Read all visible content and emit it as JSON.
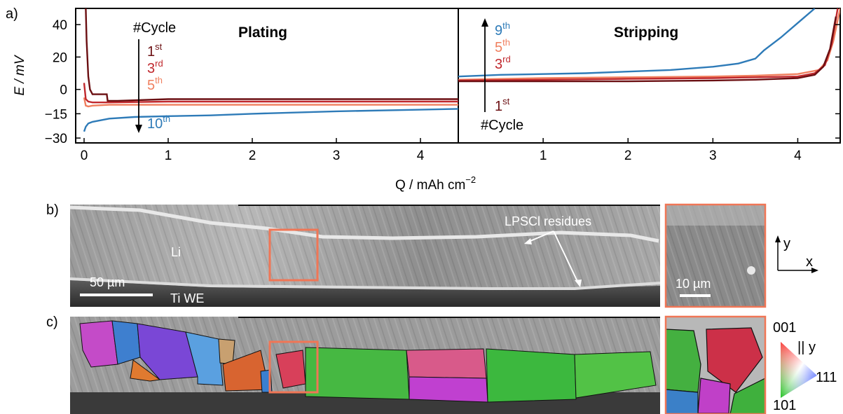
{
  "panels": {
    "a": "a)",
    "b": "b)",
    "c": "c)"
  },
  "chart_data": {
    "type": "line",
    "xlabel": "Q / mAh cm",
    "xlabel_sup": "−2",
    "ylabel": "E / mV",
    "ylim": [
      -33,
      50
    ],
    "yticks": [
      40,
      20,
      0,
      -15,
      -30
    ],
    "plating": {
      "title": "Plating",
      "xlim": [
        -0.1,
        4.45
      ],
      "xticks": [
        0,
        1,
        2,
        3,
        4
      ],
      "arrow_label": "#Cycle",
      "legend": [
        {
          "n": "1",
          "sup": "st",
          "color": "#6b0f12"
        },
        {
          "n": "3",
          "sup": "rd",
          "color": "#c0282d"
        },
        {
          "n": "5",
          "sup": "th",
          "color": "#f07f5e"
        },
        {
          "n": "10",
          "sup": "th",
          "color": "#2e7bb8"
        }
      ],
      "series": [
        {
          "cycle": "1st",
          "color": "#6b0f12",
          "x": [
            0.02,
            0.03,
            0.05,
            0.07,
            0.1,
            0.2,
            0.27,
            0.28,
            0.4,
            1,
            2,
            3,
            4,
            4.45
          ],
          "y": [
            50,
            30,
            8,
            0,
            -3,
            -3,
            -3,
            -7,
            -7,
            -6,
            -6,
            -6,
            -6,
            -6
          ]
        },
        {
          "cycle": "3rd",
          "color": "#c0282d",
          "x": [
            0,
            0.02,
            0.05,
            0.1,
            0.3,
            1,
            2,
            3,
            4,
            4.45
          ],
          "y": [
            4,
            -6,
            -7.5,
            -8,
            -8,
            -7.5,
            -7.5,
            -7.5,
            -7.5,
            -7.5
          ]
        },
        {
          "cycle": "5th",
          "color": "#f07f5e",
          "x": [
            0,
            0.02,
            0.05,
            0.1,
            0.3,
            1,
            2,
            3,
            4,
            4.45
          ],
          "y": [
            -5,
            -10,
            -10.5,
            -10,
            -9.5,
            -9.5,
            -9.5,
            -9.5,
            -9.5,
            -9.5
          ]
        },
        {
          "cycle": "10th",
          "color": "#2e7bb8",
          "x": [
            0,
            0.02,
            0.05,
            0.1,
            0.3,
            0.6,
            1,
            1.5,
            2,
            3,
            4,
            4.45
          ],
          "y": [
            -26,
            -23,
            -21,
            -20,
            -18,
            -17,
            -16.5,
            -16,
            -15,
            -13.5,
            -12.5,
            -12
          ]
        }
      ]
    },
    "stripping": {
      "title": "Stripping",
      "xlim": [
        0,
        4.5
      ],
      "xticks": [
        1,
        2,
        3,
        4
      ],
      "arrow_label": "#Cycle",
      "legend": [
        {
          "n": "9",
          "sup": "th",
          "color": "#2e7bb8"
        },
        {
          "n": "5",
          "sup": "th",
          "color": "#f07f5e"
        },
        {
          "n": "3",
          "sup": "rd",
          "color": "#c0282d"
        },
        {
          "n": "1",
          "sup": "st",
          "color": "#6b0f12"
        }
      ],
      "series": [
        {
          "cycle": "1st",
          "color": "#6b0f12",
          "x": [
            0,
            0.5,
            1,
            2,
            3,
            3.5,
            4,
            4.2,
            4.3,
            4.38,
            4.45
          ],
          "y": [
            5,
            5,
            5,
            5,
            5.5,
            6,
            7,
            9,
            14,
            25,
            45
          ]
        },
        {
          "cycle": "3rd",
          "color": "#c0282d",
          "x": [
            0,
            1,
            2,
            3,
            3.5,
            4,
            4.2,
            4.32,
            4.4,
            4.47
          ],
          "y": [
            5.5,
            6,
            6.5,
            7,
            7.5,
            8,
            10,
            15,
            28,
            50
          ]
        },
        {
          "cycle": "5th",
          "color": "#f07f5e",
          "x": [
            0,
            1,
            2,
            3,
            3.5,
            4,
            4.25,
            4.35,
            4.42,
            4.5
          ],
          "y": [
            6,
            7,
            7.5,
            8,
            8.5,
            9.5,
            12,
            18,
            30,
            50
          ]
        },
        {
          "cycle": "9th",
          "color": "#2e7bb8",
          "x": [
            0,
            0.5,
            1,
            1.5,
            2,
            2.5,
            3,
            3.3,
            3.5,
            3.6,
            3.8,
            4,
            4.2
          ],
          "y": [
            8,
            9,
            9.5,
            10,
            11,
            12,
            14,
            16,
            19,
            24,
            32,
            41,
            50
          ]
        }
      ]
    }
  },
  "micrograph_b": {
    "label_li": "Li",
    "label_ti": "Ti WE",
    "label_residues": "LPSCl residues",
    "scalebar": "50 µm",
    "inset_scalebar": "10 µm"
  },
  "axes_icon": {
    "y": "y",
    "x": "x"
  },
  "ipf_key": {
    "top": "001",
    "parallel": "|| y",
    "right": "111",
    "bottom": "101"
  }
}
